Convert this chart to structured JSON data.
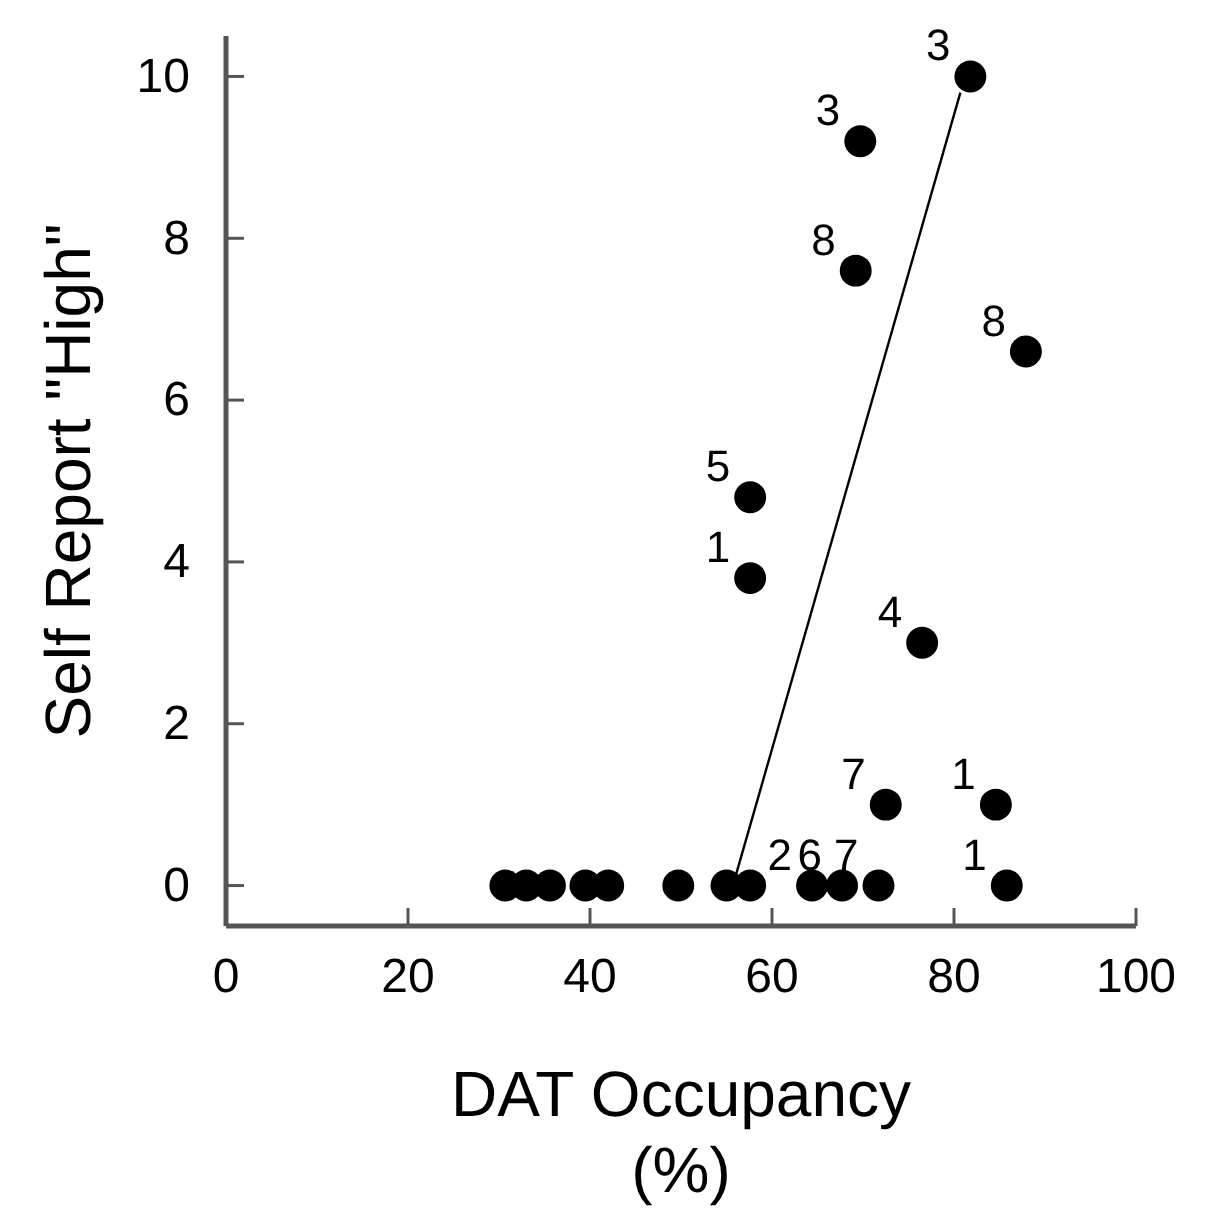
{
  "chart_data": {
    "type": "scatter",
    "xlabel": "DAT Occupancy\n(%)",
    "ylabel": "Self Report \"High\"",
    "xlim": [
      0,
      100
    ],
    "ylim": [
      -0.5,
      10.5
    ],
    "xticks": [
      0,
      20,
      40,
      60,
      80,
      100
    ],
    "yticks": [
      0,
      2,
      4,
      6,
      8,
      10
    ],
    "grid": false,
    "marker": "circle",
    "series": [
      {
        "color": "#000000",
        "x": [
          81.8,
          69.7,
          69.2,
          87.9,
          57.6,
          57.6,
          76.5,
          72.5,
          84.6,
          30.7,
          33,
          35.6,
          39.5,
          42,
          49.7,
          55,
          57.6,
          64.4,
          67.7,
          71.7,
          85.8
        ],
        "values": [
          10,
          9.2,
          7.6,
          6.6,
          4.8,
          3.8,
          3.0,
          1.0,
          1.0,
          0,
          0,
          0,
          0,
          0,
          0,
          0,
          0,
          0,
          0,
          0,
          0
        ]
      },
      {
        "type": "line",
        "color": "#000000",
        "line_style": "solid",
        "marker": "none",
        "x": [
          55.7,
          80.7
        ],
        "values": [
          0,
          9.8
        ]
      }
    ],
    "annotations": [
      {
        "text": "3",
        "x": 81.8,
        "y": 10
      },
      {
        "text": "3",
        "x": 69.7,
        "y": 9.2
      },
      {
        "text": "8",
        "x": 69.2,
        "y": 7.6
      },
      {
        "text": "8",
        "x": 87.9,
        "y": 6.6
      },
      {
        "text": "5",
        "x": 57.6,
        "y": 4.8
      },
      {
        "text": "1",
        "x": 57.6,
        "y": 3.8
      },
      {
        "text": "4",
        "x": 76.5,
        "y": 3.0
      },
      {
        "text": "7",
        "x": 72.5,
        "y": 1.0
      },
      {
        "text": "1",
        "x": 84.6,
        "y": 1.0
      },
      {
        "text": "2",
        "x": 64.4,
        "y": 0
      },
      {
        "text": "6",
        "x": 67.7,
        "y": 0
      },
      {
        "text": "7",
        "x": 71.7,
        "y": 0
      },
      {
        "text": "1",
        "x": 85.8,
        "y": 0
      }
    ]
  }
}
